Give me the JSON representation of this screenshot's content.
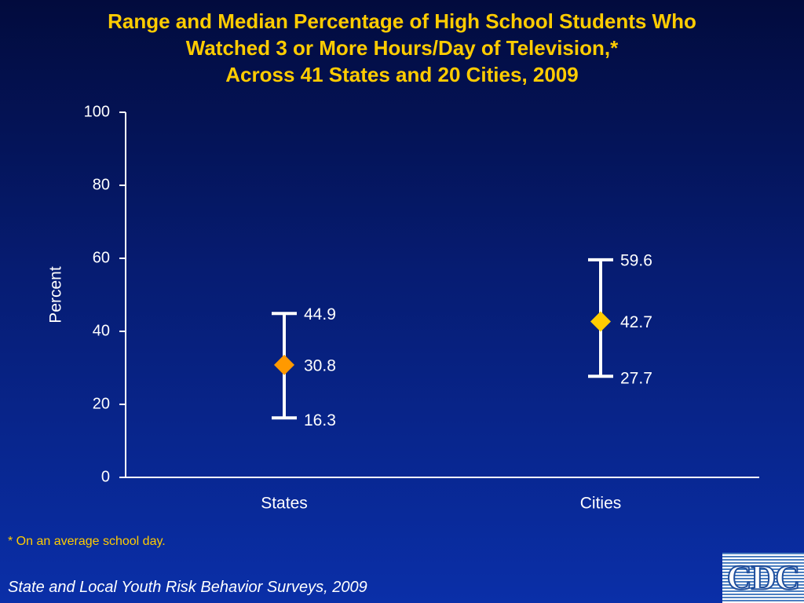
{
  "title_lines": [
    "Range and Median Percentage of High School Students Who",
    "Watched 3 or More Hours/Day of Television,*",
    "Across 41 States and 20 Cities, 2009"
  ],
  "footnote": "* On an average school day.",
  "source": "State and Local Youth Risk Behavior Surveys, 2009",
  "logo_text": "CDC",
  "colors": {
    "background_top": "#020b3d",
    "background_bottom": "#0a2fa8",
    "title": "#ffcc00",
    "axis": "#ffffff",
    "states_marker": "#ff9900",
    "cities_marker": "#ffcc00",
    "logo_blue": "#1f4e9c"
  },
  "chart_data": {
    "type": "range",
    "categories": [
      "States",
      "Cities"
    ],
    "series": [
      {
        "category": "States",
        "min": 16.3,
        "median": 30.8,
        "max": 44.9,
        "min_label": "16.3",
        "median_label": "30.8",
        "max_label": "44.9",
        "marker_color": "#ff9900"
      },
      {
        "category": "Cities",
        "min": 27.7,
        "median": 42.7,
        "max": 59.6,
        "min_label": "27.7",
        "median_label": "42.7",
        "max_label": "59.6",
        "marker_color": "#ffcc00"
      }
    ],
    "ylabel": "Percent",
    "ylim": [
      0,
      100
    ],
    "yticks": [
      0,
      20,
      40,
      60,
      80,
      100
    ],
    "ytick_labels": [
      "0",
      "20",
      "40",
      "60",
      "80",
      "100"
    ],
    "grid": false
  }
}
